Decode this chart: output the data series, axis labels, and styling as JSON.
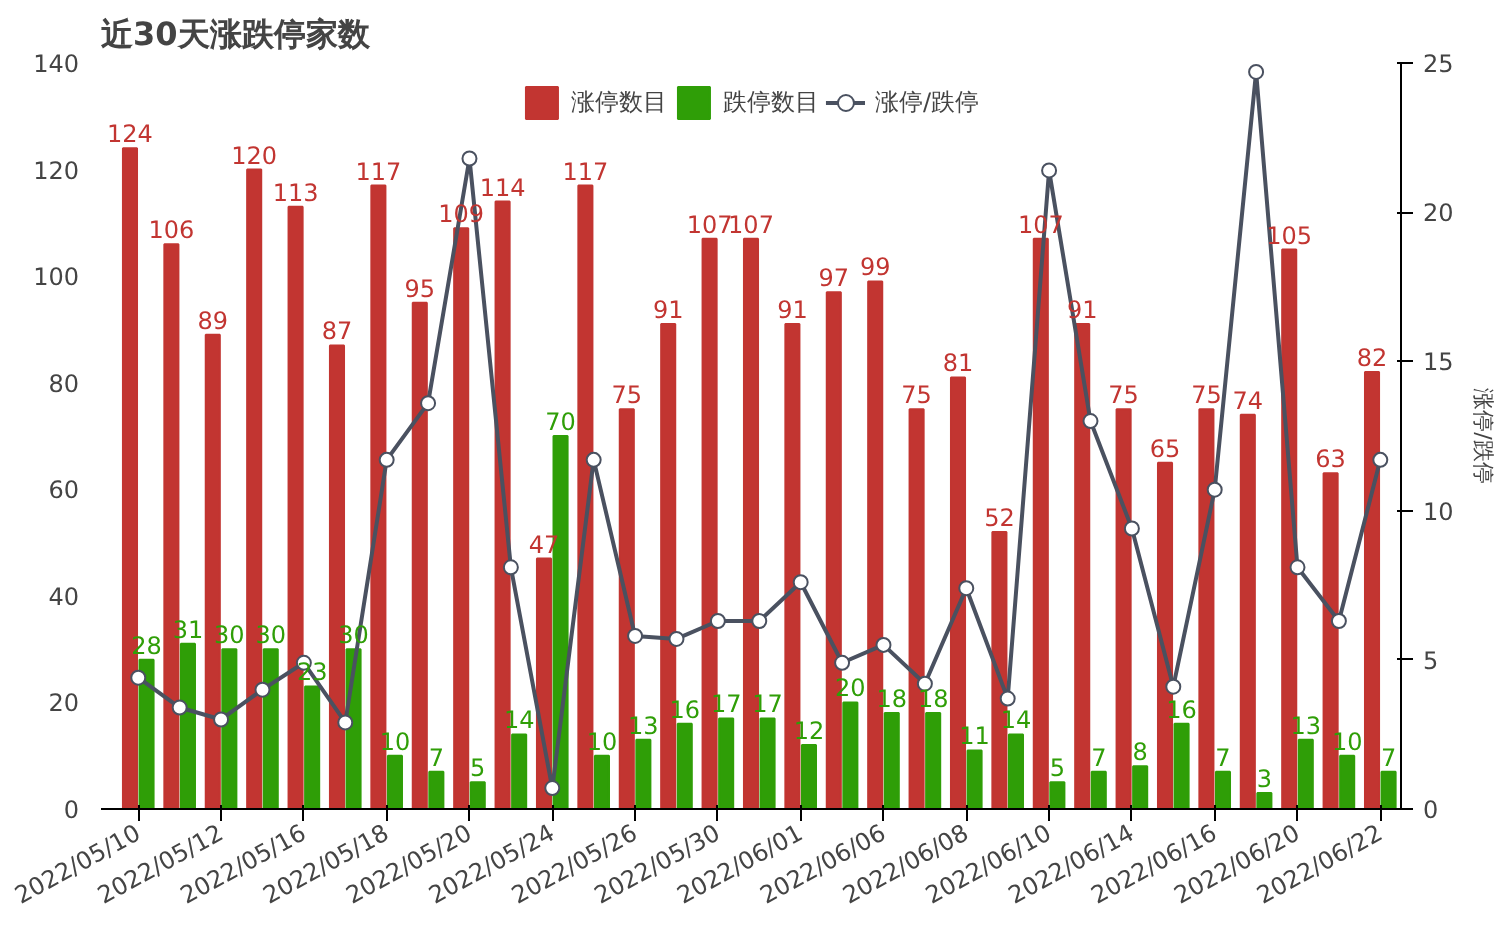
{
  "chart_data": {
    "type": "bar",
    "title": "近30天涨跌停家数",
    "y2label": "涨停/跌停",
    "categories": [
      "2022/05/10",
      null,
      "2022/05/12",
      null,
      "2022/05/16",
      null,
      "2022/05/18",
      null,
      "2022/05/20",
      null,
      "2022/05/24",
      null,
      "2022/05/26",
      null,
      "2022/05/30",
      null,
      "2022/06/01",
      null,
      "2022/06/06",
      null,
      "2022/06/08",
      null,
      "2022/06/10",
      null,
      "2022/06/14",
      null,
      "2022/06/16",
      null,
      "2022/06/20",
      null,
      "2022/06/22"
    ],
    "series": [
      {
        "name": "涨停数目",
        "color": "#c23531",
        "values": [
          124,
          106,
          89,
          120,
          113,
          87,
          117,
          95,
          109,
          114,
          47,
          117,
          75,
          91,
          107,
          107,
          91,
          97,
          99,
          75,
          81,
          52,
          107,
          91,
          75,
          65,
          75,
          74,
          105,
          63,
          82
        ],
        "value_labels": [
          "124",
          "106",
          "89",
          "120",
          "113",
          "87",
          "117",
          "95",
          "109",
          "114",
          "47",
          "117",
          "75",
          "91",
          "107",
          "107",
          "91",
          "97",
          "99",
          "75",
          "81",
          "52",
          "107",
          "91",
          "75",
          "65",
          "75",
          "74",
          "105",
          "63",
          "82"
        ]
      },
      {
        "name": "跌停数目",
        "color": "#2f9e07",
        "values": [
          28,
          31,
          30,
          30,
          23,
          30,
          10,
          7,
          5,
          14,
          70,
          10,
          13,
          16,
          17,
          17,
          12,
          20,
          18,
          18,
          11,
          14,
          5,
          7,
          8,
          16,
          7,
          3,
          13,
          10,
          7
        ],
        "value_labels": [
          "28",
          "31",
          "30",
          "30",
          "23",
          "30",
          "10",
          "7",
          "5",
          "14",
          "70",
          "10",
          "13",
          "16",
          "17",
          "17",
          "12",
          "20",
          "18",
          "18",
          "11",
          "14",
          "5",
          "7",
          "8",
          "16",
          "7",
          "3",
          "13",
          "10",
          "7"
        ]
      },
      {
        "name": "涨停/跌停",
        "type": "line",
        "axis": "y2",
        "color": "#4a5160",
        "marker": "circle",
        "line_style": "solid",
        "values": [
          4.4,
          3.4,
          3.0,
          4.0,
          4.9,
          2.9,
          11.7,
          13.6,
          21.8,
          8.1,
          0.7,
          11.7,
          5.8,
          5.7,
          6.3,
          6.3,
          7.6,
          4.9,
          5.5,
          4.2,
          7.4,
          3.7,
          21.4,
          13.0,
          9.4,
          4.1,
          10.7,
          24.7,
          8.1,
          6.3,
          11.7
        ]
      }
    ],
    "ylim": [
      0,
      140
    ],
    "yticks": [
      0,
      20,
      40,
      60,
      80,
      100,
      120,
      140
    ],
    "y2lim": [
      0,
      25
    ],
    "y2ticks": [
      0,
      5,
      10,
      15,
      20,
      25
    ],
    "grid": false,
    "legend": "top"
  }
}
